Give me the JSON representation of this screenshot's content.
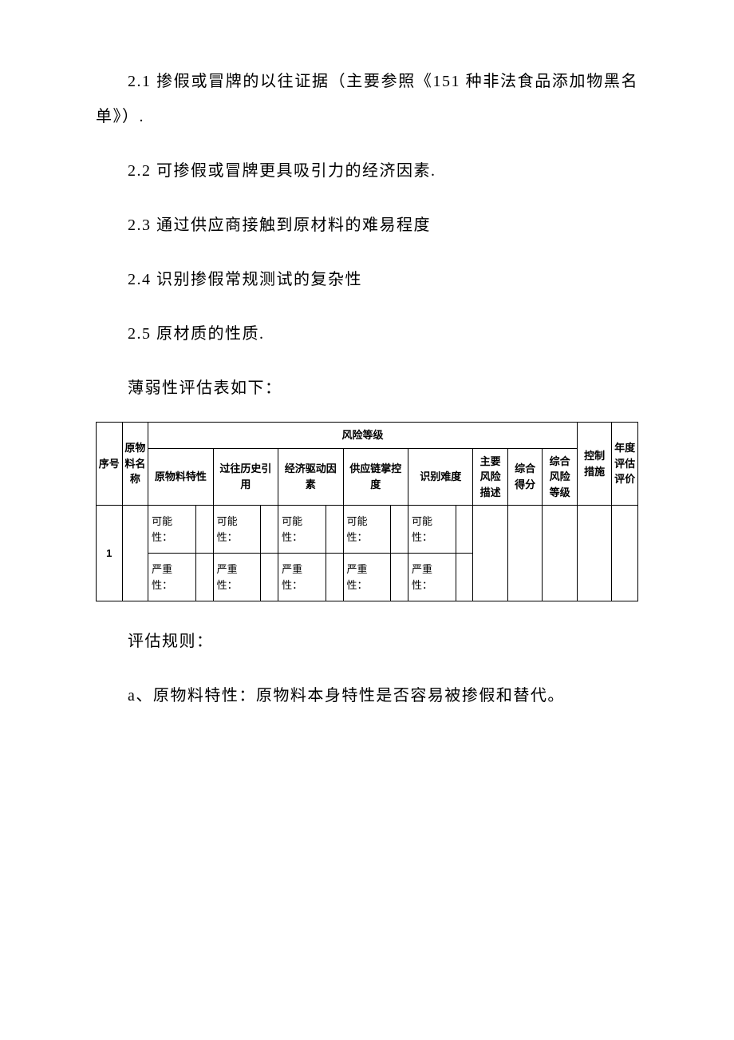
{
  "paragraphs": {
    "p1": "2.1 掺假或冒牌的以往证据（主要参照《151 种非法食品添加物黑名单》）.",
    "p2": "2.2 可掺假或冒牌更具吸引力的经济因素.",
    "p3": "2.3 通过供应商接触到原材料的难易程度",
    "p4": "2.4  识别掺假常规测试的复杂性",
    "p5": "2.5 原材质的性质.",
    "tableIntro": "薄弱性评估表如下：",
    "rulesTitle": "评估规则：",
    "ruleA": "a、原物料特性：原物料本身特性是否容易被掺假和替代。"
  },
  "table": {
    "headers": {
      "seq": "序号",
      "materialName": "原物料名称",
      "riskLevel": "风险等级",
      "controlMeasure": "控制措施",
      "annualEval": "年度评估评价",
      "materialChar": "原物料特性",
      "historyRef": "过往历史引用",
      "economicDrive": "经济驱动因素",
      "supplyChain": "供应链掌控度",
      "identifyDiff": "识别难度",
      "mainRiskDesc": "主要风险描述",
      "totalScore": "综合得分",
      "totalRiskLevel": "综合风险等级"
    },
    "labels": {
      "possibility": "可能性：",
      "severity": "严重性："
    },
    "rows": [
      {
        "seq": "1"
      }
    ]
  }
}
